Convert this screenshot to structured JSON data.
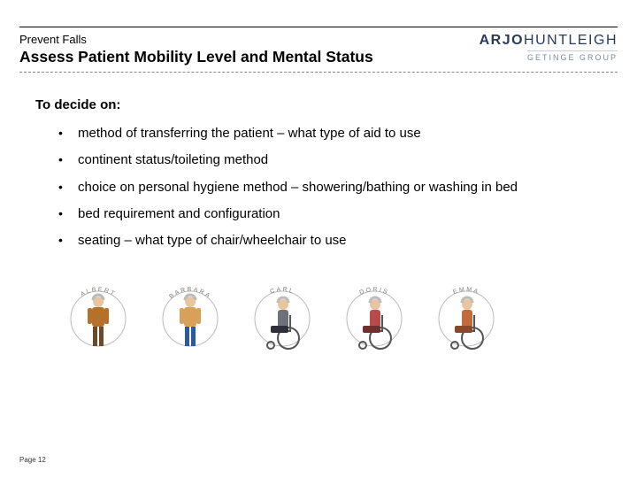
{
  "header": {
    "kicker": "Prevent Falls",
    "title": "Assess Patient Mobility Level and Mental Status",
    "brand_main_a": "ARJO",
    "brand_main_b": "HUNTLEIGH",
    "brand_sub": "GETINGE GROUP"
  },
  "content": {
    "lead": "To decide on:",
    "bullets": [
      "method of transferring the patient – what type of aid to use",
      "continent status/toileting method",
      "choice on personal hygiene method – showering/bathing or washing in bed",
      "bed requirement and configuration",
      "seating – what type of chair/wheelchair to use"
    ]
  },
  "personas": [
    {
      "name": "ALBERT",
      "skin": "#e8c4a0",
      "clothes": "#b5702a",
      "pants": "#6b4a2a",
      "wheelchair": false
    },
    {
      "name": "BARBARA",
      "skin": "#e8c4a0",
      "clothes": "#d9a05a",
      "pants": "#2a5aa0",
      "wheelchair": false
    },
    {
      "name": "CARL",
      "skin": "#e8c4a0",
      "clothes": "#707078",
      "pants": "#303038",
      "wheelchair": true
    },
    {
      "name": "DORIS",
      "skin": "#e8c4a0",
      "clothes": "#b84a4a",
      "pants": "#703030",
      "wheelchair": true
    },
    {
      "name": "EMMA",
      "skin": "#e8c4a0",
      "clothes": "#c46a3a",
      "pants": "#8a4a2a",
      "wheelchair": true
    }
  ],
  "styling": {
    "circle_stroke": "#b8b8b8",
    "label_color": "#808080",
    "label_fontsize": 7
  },
  "footer": {
    "page": "Page 12"
  }
}
